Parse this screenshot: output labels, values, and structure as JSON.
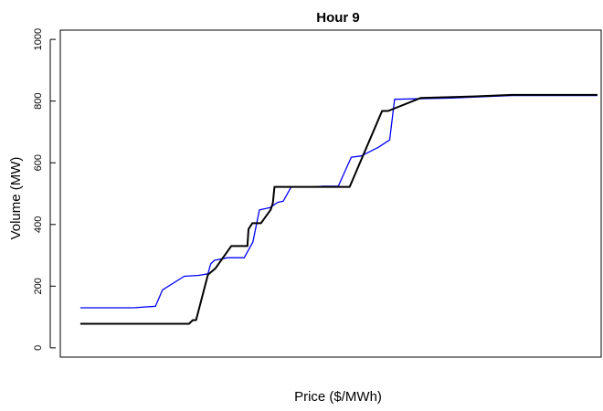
{
  "chart_data": {
    "type": "line",
    "title": "Hour 9",
    "xlabel": "Price ($/MWh)",
    "ylabel": "Volume (MW)",
    "xlim": [
      0,
      100
    ],
    "ylim": [
      -30,
      1030
    ],
    "yticks": [
      0,
      200,
      400,
      600,
      800,
      1000
    ],
    "ytick_labels": [
      "0",
      "200",
      "400",
      "600",
      "800",
      "1000"
    ],
    "x_ticks_shown": false,
    "grid": false,
    "legend": "none",
    "series": [
      {
        "color": "#0000ff",
        "line_width": 1.3,
        "points": [
          [
            3.7,
            130
          ],
          [
            13.5,
            130
          ],
          [
            17.6,
            135
          ],
          [
            18.9,
            188
          ],
          [
            22.9,
            232
          ],
          [
            25.6,
            235
          ],
          [
            27.3,
            240
          ],
          [
            27.8,
            272
          ],
          [
            28.5,
            284
          ],
          [
            30.9,
            292
          ],
          [
            34.0,
            292
          ],
          [
            35.6,
            343
          ],
          [
            36.8,
            447
          ],
          [
            38.8,
            455
          ],
          [
            40.2,
            472
          ],
          [
            41.2,
            475
          ],
          [
            42.7,
            522
          ],
          [
            46.5,
            522
          ],
          [
            48.6,
            524
          ],
          [
            51.4,
            524
          ],
          [
            53.8,
            618
          ],
          [
            55.6,
            622
          ],
          [
            58.8,
            650
          ],
          [
            60.9,
            674
          ],
          [
            61.8,
            806
          ],
          [
            72.4,
            810
          ],
          [
            83.5,
            818
          ],
          [
            92.0,
            818
          ],
          [
            99.3,
            818
          ]
        ]
      },
      {
        "color": "#000000",
        "line_width": 2,
        "points": [
          [
            3.7,
            78
          ],
          [
            23.8,
            78
          ],
          [
            24.5,
            90
          ],
          [
            25.1,
            90
          ],
          [
            27.3,
            237
          ],
          [
            28.7,
            258
          ],
          [
            31.6,
            330
          ],
          [
            34.6,
            330
          ],
          [
            34.8,
            385
          ],
          [
            35.5,
            404
          ],
          [
            37.1,
            404
          ],
          [
            38.9,
            448
          ],
          [
            39.3,
            470
          ],
          [
            39.6,
            522
          ],
          [
            51.8,
            522
          ],
          [
            53.5,
            522
          ],
          [
            59.5,
            768
          ],
          [
            60.6,
            768
          ],
          [
            66.6,
            810
          ],
          [
            76.3,
            815
          ],
          [
            83.5,
            820
          ],
          [
            92.0,
            820
          ],
          [
            99.3,
            820
          ]
        ]
      }
    ]
  }
}
